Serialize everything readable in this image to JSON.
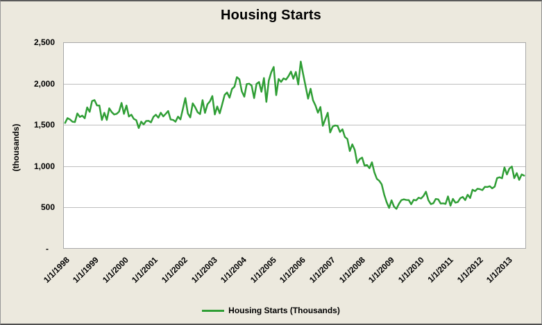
{
  "chart": {
    "title": "Housing Starts",
    "y_axis_title": "(thousands)",
    "legend_label": "Housing Starts (Thousands)",
    "colors": {
      "line": "#2F9E35",
      "background": "#ECE9DE",
      "plot_background": "#FFFFFF",
      "gridline": "#BDBDBD"
    }
  },
  "chart_data": {
    "type": "line",
    "title": "Housing Starts",
    "ylabel": "(thousands)",
    "ylim": [
      0,
      2500
    ],
    "y_tick_step": 500,
    "y_tick_labels": [
      "2,500",
      "2,000",
      "1,500",
      "1,000",
      "500",
      "-"
    ],
    "x_tick_labels": [
      "1/1/1998",
      "1/1/1999",
      "1/1/2000",
      "1/1/2001",
      "1/1/2002",
      "1/1/2003",
      "1/1/2004",
      "1/1/2005",
      "1/1/2006",
      "1/1/2007",
      "1/1/2008",
      "1/1/2009",
      "1/1/2010",
      "1/1/2011",
      "1/1/2012",
      "1/1/2013"
    ],
    "x_start": "1/1/1998",
    "x_interval": "monthly",
    "grid": true,
    "legend_position": "bottom",
    "series": [
      {
        "name": "Housing Starts (Thousands)",
        "values": [
          1525,
          1584,
          1567,
          1540,
          1536,
          1641,
          1598,
          1614,
          1582,
          1715,
          1660,
          1792,
          1804,
          1738,
          1737,
          1561,
          1649,
          1562,
          1704,
          1657,
          1628,
          1636,
          1663,
          1769,
          1636,
          1737,
          1604,
          1626,
          1575,
          1559,
          1463,
          1541,
          1507,
          1549,
          1551,
          1532,
          1600,
          1625,
          1590,
          1649,
          1605,
          1636,
          1670,
          1567,
          1562,
          1540,
          1602,
          1568,
          1698,
          1829,
          1642,
          1592,
          1764,
          1717,
          1655,
          1633,
          1804,
          1648,
          1753,
          1788,
          1853,
          1629,
          1726,
          1643,
          1751,
          1867,
          1897,
          1833,
          1939,
          1967,
          2083,
          2057,
          1911,
          1846,
          1998,
          2003,
          1981,
          1828,
          2002,
          2024,
          1905,
          2072,
          1782,
          2042,
          2144,
          2207,
          1864,
          2061,
          2025,
          2068,
          2054,
          2095,
          2151,
          2065,
          2147,
          1994,
          2273,
          2119,
          1969,
          1821,
          1942,
          1802,
          1737,
          1650,
          1720,
          1491,
          1570,
          1649,
          1409,
          1480,
          1495,
          1490,
          1415,
          1448,
          1354,
          1330,
          1183,
          1264,
          1197,
          1037,
          1084,
          1103,
          1005,
          1013,
          973,
          1046,
          923,
          844,
          820,
          777,
          652,
          560,
          490,
          582,
          505,
          478,
          540,
          585,
          594,
          586,
          585,
          534,
          588,
          581,
          614,
          604,
          636,
          687,
          583,
          536,
          546,
          599,
          594,
          543,
          545,
          539,
          630,
          517,
          600,
          554,
          561,
          608,
          623,
          585,
          650,
          610,
          711,
          694,
          723,
          718,
          706,
          747,
          744,
          754,
          728,
          749,
          854,
          863,
          851,
          983,
          898,
          969,
          994,
          852,
          914,
          831,
          898,
          883
        ]
      }
    ]
  }
}
